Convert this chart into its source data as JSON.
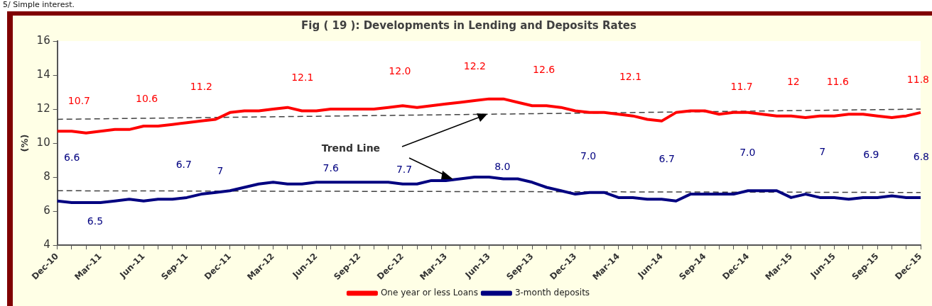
{
  "chart_data": {
    "type": "line",
    "title": "Fig ( 19 ): Developments in Lending and Deposits Rates",
    "ylabel": "(%)",
    "categories": [
      "Dec-10",
      null,
      null,
      "Mar-11",
      null,
      null,
      "Jun-11",
      null,
      null,
      "Sep-11",
      null,
      null,
      "Dec-11",
      null,
      null,
      "Mar-12",
      null,
      null,
      "Jun-12",
      null,
      null,
      "Sep-12",
      null,
      null,
      "Dec-12",
      null,
      null,
      "Mar-13",
      null,
      null,
      "Jun-13",
      null,
      null,
      "Sep-13",
      null,
      null,
      "Dec-13",
      null,
      null,
      "Mar-14",
      null,
      null,
      "Jun-14",
      null,
      null,
      "Sep-14",
      null,
      null,
      "Dec-14",
      null,
      null,
      "Mar-15",
      null,
      null,
      "Jun-15",
      null,
      null,
      "Sep-15",
      null,
      null,
      "Dec-15"
    ],
    "series": [
      {
        "name": "One year or less Loans",
        "color": "#ff0000",
        "values": [
          10.7,
          10.7,
          10.6,
          10.7,
          10.8,
          10.8,
          11.0,
          11.0,
          11.1,
          11.2,
          11.3,
          11.4,
          11.8,
          11.9,
          11.9,
          12.0,
          12.1,
          11.9,
          11.9,
          12.0,
          12.0,
          12.0,
          12.0,
          12.1,
          12.2,
          12.1,
          12.2,
          12.3,
          12.4,
          12.5,
          12.6,
          12.6,
          12.4,
          12.2,
          12.2,
          12.1,
          11.9,
          11.8,
          11.8,
          11.7,
          11.6,
          11.4,
          11.3,
          11.8,
          11.9,
          11.9,
          11.7,
          11.8,
          11.8,
          11.7,
          11.6,
          11.6,
          11.5,
          11.6,
          11.6,
          11.7,
          11.7,
          11.6,
          11.5,
          11.6,
          11.8
        ]
      },
      {
        "name": "3-month deposits",
        "color": "#000080",
        "values": [
          6.6,
          6.5,
          6.5,
          6.5,
          6.6,
          6.7,
          6.6,
          6.7,
          6.7,
          6.8,
          7.0,
          7.1,
          7.2,
          7.4,
          7.6,
          7.7,
          7.6,
          7.6,
          7.7,
          7.7,
          7.7,
          7.7,
          7.7,
          7.7,
          7.6,
          7.6,
          7.8,
          7.8,
          7.9,
          8.0,
          8.0,
          7.9,
          7.9,
          7.7,
          7.4,
          7.2,
          7.0,
          7.1,
          7.1,
          6.8,
          6.8,
          6.7,
          6.7,
          6.6,
          7.0,
          7.0,
          7.0,
          7.0,
          7.2,
          7.2,
          7.2,
          6.8,
          7.0,
          6.8,
          6.8,
          6.7,
          6.8,
          6.8,
          6.9,
          6.8,
          6.8
        ]
      },
      {
        "type": "line",
        "color": "#404040",
        "line_style": "dashed",
        "x": [
          "Dec-10",
          "Dec-15"
        ],
        "values": [
          11.4,
          12.0
        ]
      },
      {
        "type": "line",
        "color": "#404040",
        "line_style": "dashed",
        "x": [
          "Dec-10",
          "Dec-15"
        ],
        "values": [
          7.2,
          7.1
        ]
      }
    ],
    "ylim": [
      4,
      16
    ],
    "yticks": [
      4,
      6,
      8,
      10,
      12,
      14,
      16
    ],
    "grid": false,
    "legend": "bottom",
    "marker": "none",
    "line_style": "solid",
    "annotations": [
      "Trend Line",
      "5/ Simple interest.",
      "10.7",
      "10.6",
      "11.2",
      "12.1",
      "12.0",
      "12.2",
      "12.6",
      "12.1",
      "11.7",
      "12",
      "11.6",
      "11.8",
      "6.6",
      "6.5",
      "6.7",
      "7",
      "7.6",
      "7.7",
      "8.0",
      "7.0",
      "6.7",
      "7.0",
      "7",
      "6.9",
      "6.8"
    ]
  }
}
